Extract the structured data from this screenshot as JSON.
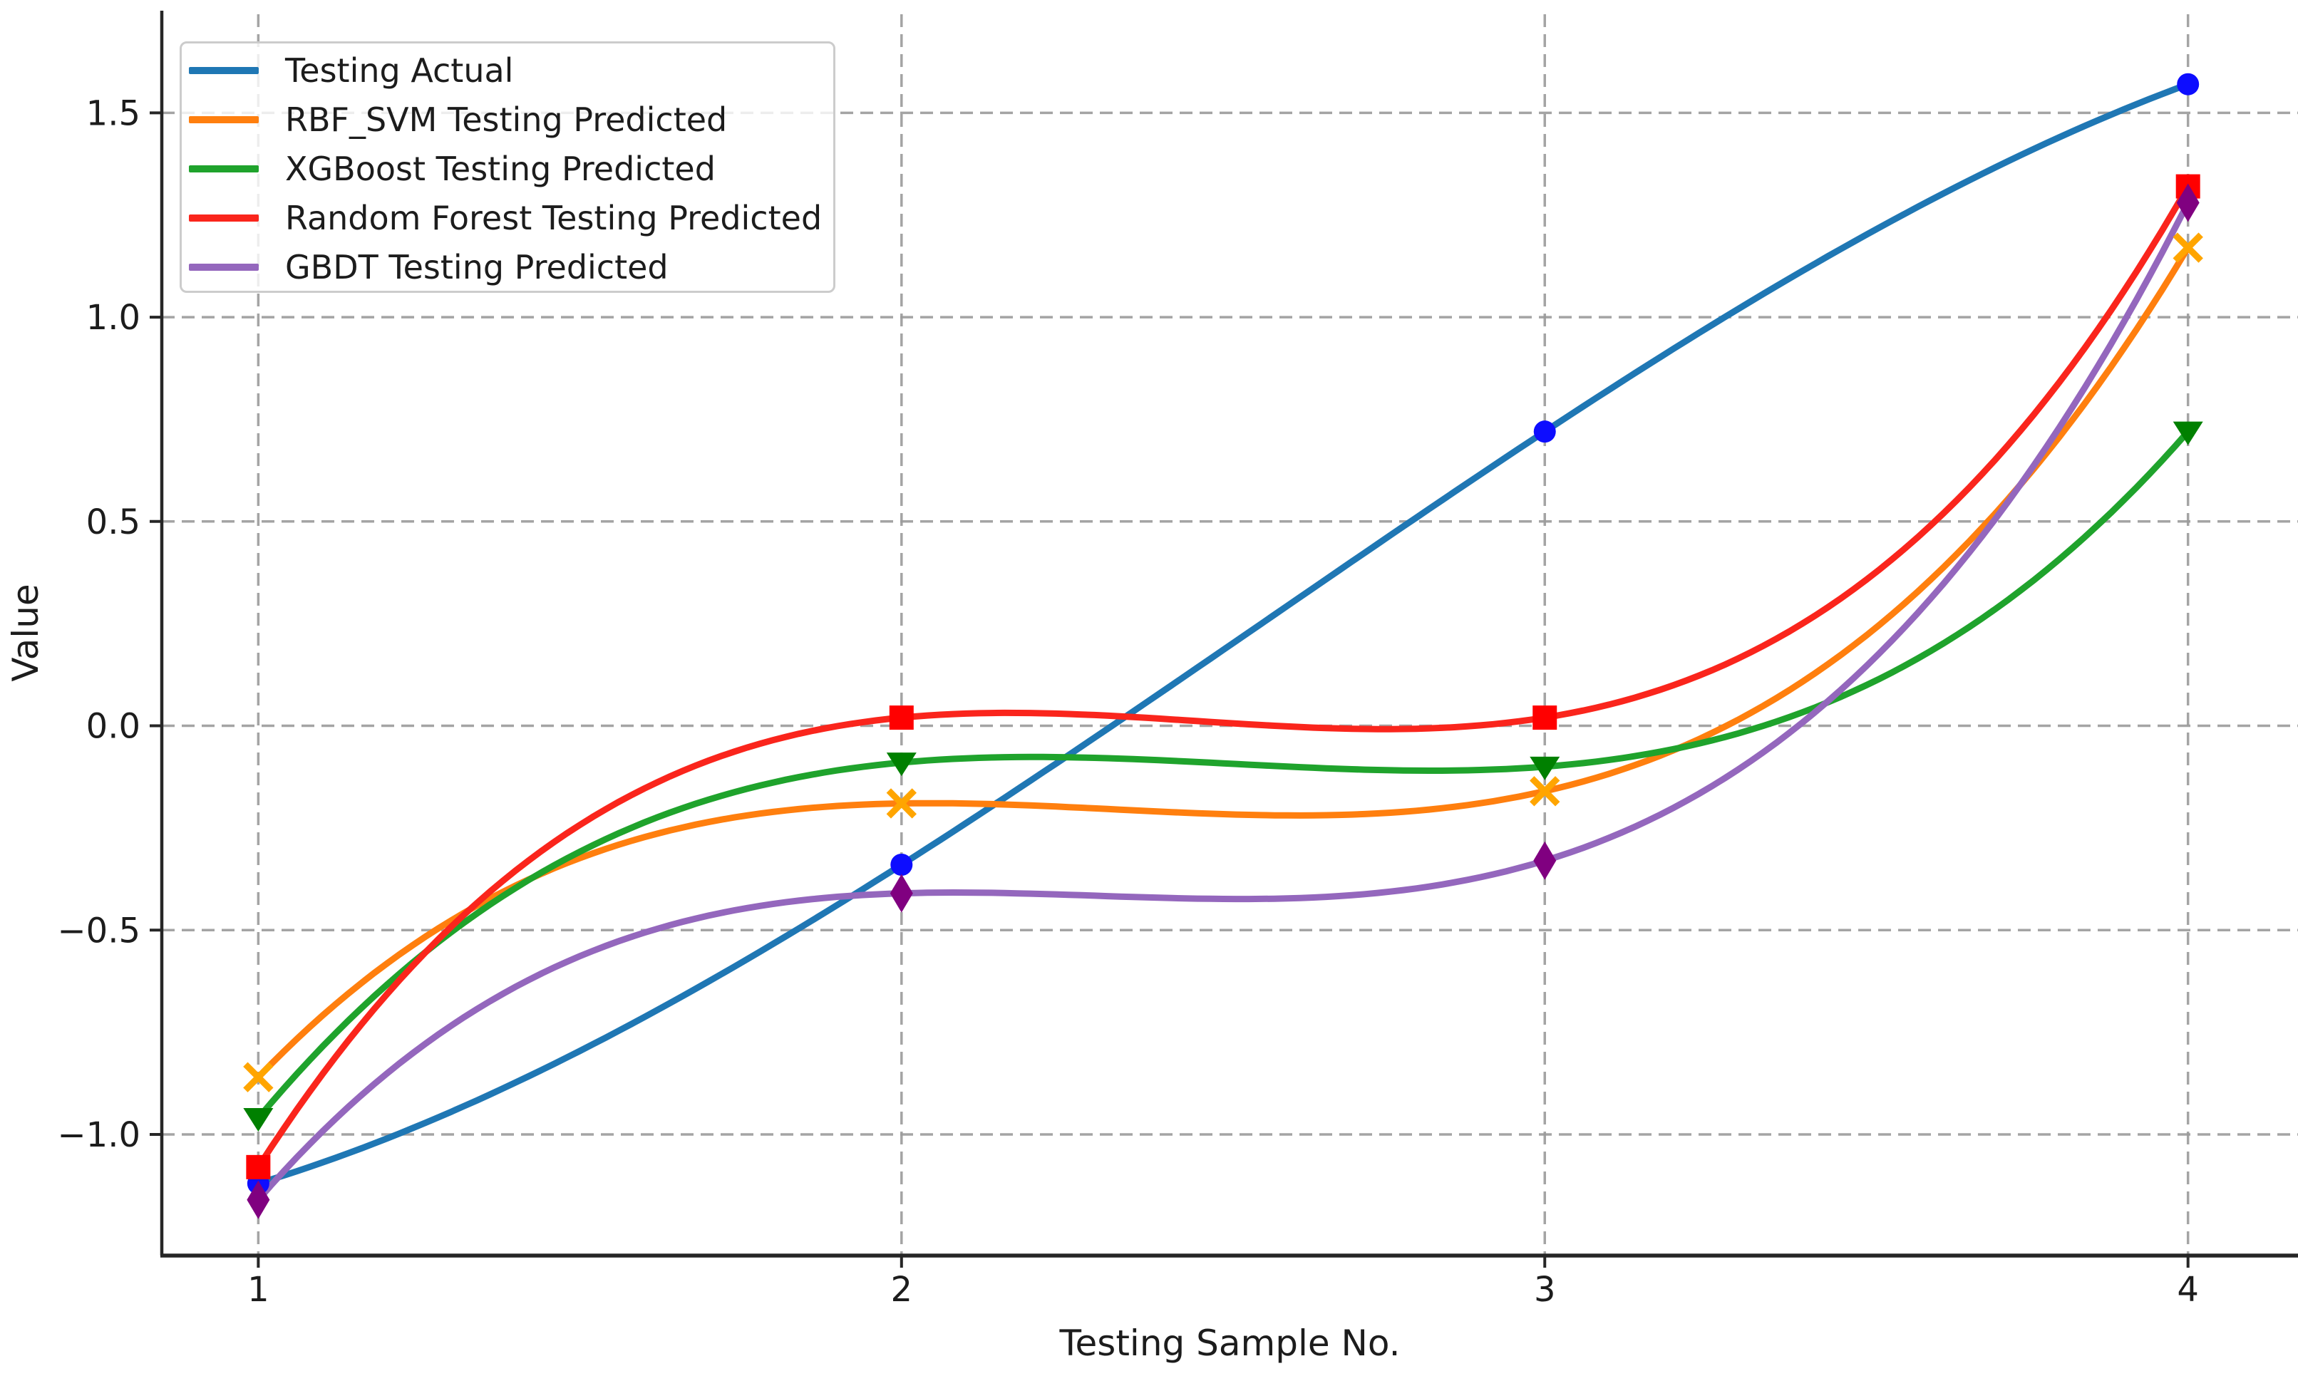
{
  "chart_data": {
    "type": "line",
    "title": "",
    "xlabel": "Testing Sample No.",
    "ylabel": "Value",
    "x": [
      1,
      2,
      3,
      4
    ],
    "xtick_labels": [
      "1",
      "2",
      "3",
      "4"
    ],
    "ytick_values": [
      -1.0,
      -0.5,
      0.0,
      0.5,
      1.0,
      1.5
    ],
    "ytick_labels": [
      "−1.0",
      "−0.5",
      "0.0",
      "0.5",
      "1.0",
      "1.5"
    ],
    "xlim": [
      0.85,
      4.15
    ],
    "ylim": [
      -1.3,
      1.71
    ],
    "grid": "dashed-both-axes",
    "grid_color": "#9b9b9b",
    "spine_color": "#262626",
    "tick_color": "#262626",
    "text_color": "#1c1c1c",
    "background": "#ffffff",
    "legend_position": "upper-left",
    "interpolation": "smooth cubic curve through sample points",
    "series": [
      {
        "name": "Testing Actual",
        "line_color": "#1f77b4",
        "marker": "circle",
        "marker_color": "#0d0dff",
        "values": [
          -1.12,
          -0.34,
          0.72,
          1.57
        ]
      },
      {
        "name": "RBF_SVM Testing Predicted",
        "line_color": "#ff7f0e",
        "marker": "x",
        "marker_color": "#ffa500",
        "values": [
          -0.86,
          -0.19,
          -0.16,
          1.17
        ]
      },
      {
        "name": "XGBoost Testing Predicted",
        "line_color": "#1fa32c",
        "marker": "triangle-down",
        "marker_color": "#008000",
        "values": [
          -0.96,
          -0.09,
          -0.1,
          0.72
        ]
      },
      {
        "name": "Random Forest Testing Predicted",
        "line_color": "#fa251c",
        "marker": "square",
        "marker_color": "#ff0000",
        "values": [
          -1.08,
          0.02,
          0.02,
          1.32
        ]
      },
      {
        "name": "GBDT Testing Predicted",
        "line_color": "#9467bd",
        "marker": "diamond",
        "marker_color": "#800080",
        "values": [
          -1.16,
          -0.41,
          -0.33,
          1.28
        ]
      }
    ]
  }
}
